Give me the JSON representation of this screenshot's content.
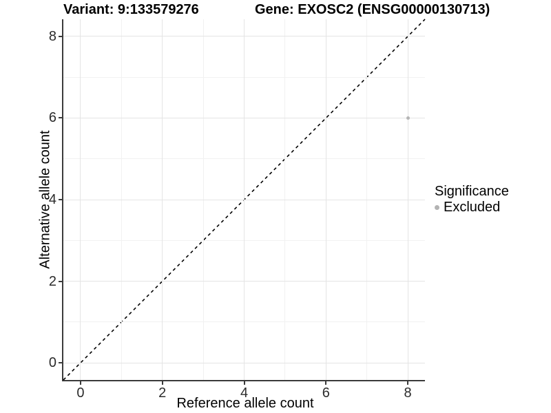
{
  "chart_data": {
    "type": "scatter",
    "title_left": "Variant: 9:133579276",
    "title_right": "Gene: EXOSC2 (ENSG00000130713)",
    "xlabel": "Reference allele count",
    "ylabel": "Alternative allele count",
    "xlim": [
      -0.42,
      8.42
    ],
    "ylim": [
      -0.42,
      8.42
    ],
    "x_ticks": [
      0,
      2,
      4,
      6,
      8
    ],
    "y_ticks": [
      0,
      2,
      4,
      6,
      8
    ],
    "x_minor_ticks": [
      1,
      3,
      5,
      7
    ],
    "y_minor_ticks": [
      1,
      3,
      5,
      7
    ],
    "grid": true,
    "reference_line": {
      "style": "dashed",
      "color": "#000000",
      "from": [
        -0.42,
        -0.42
      ],
      "to": [
        8.42,
        8.42
      ]
    },
    "series": [
      {
        "name": "Excluded",
        "color": "#b5b5b5",
        "point_diameter": 5,
        "points": [
          {
            "x": 8,
            "y": 6
          }
        ]
      }
    ],
    "legend": {
      "position": "right",
      "title": "Significance",
      "entries": [
        {
          "label": "Excluded",
          "color": "#b3b3b3"
        }
      ]
    },
    "colors": {
      "axis_line": "#3a3a3a",
      "grid_major": "#e4e4e4",
      "grid_minor": "#f1f1f1",
      "tick_label": "#2b2b2b"
    }
  }
}
